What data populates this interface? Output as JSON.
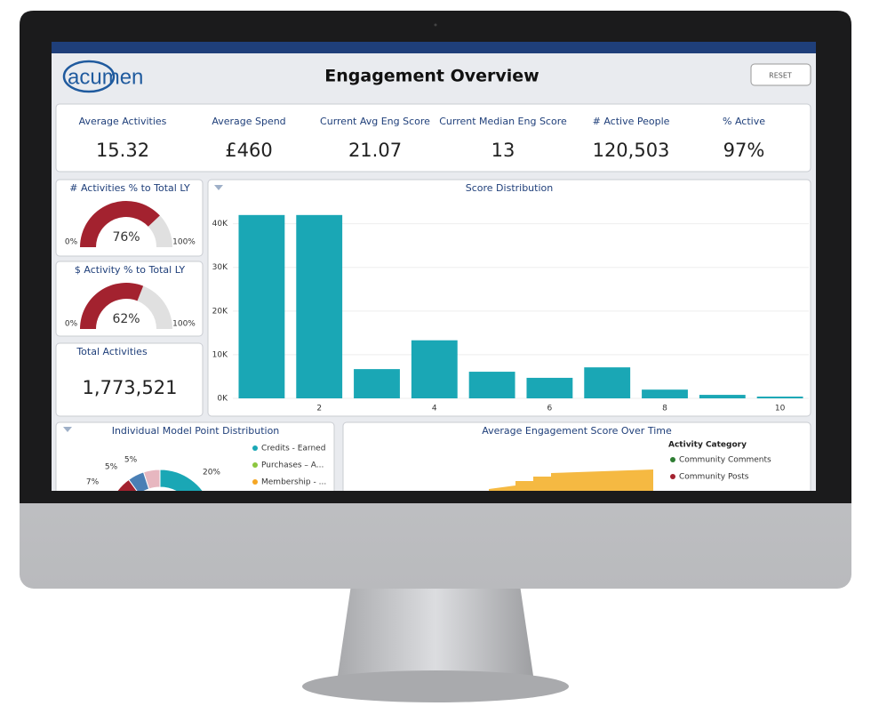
{
  "header": {
    "logo": "acumen",
    "title": "Engagement Overview",
    "reset": "RESET"
  },
  "kpis": [
    {
      "label": "Average Activities",
      "value": "15.32"
    },
    {
      "label": "Average Spend",
      "value": "£460"
    },
    {
      "label": "Current Avg Eng Score",
      "value": "21.07"
    },
    {
      "label": "Current Median Eng Score",
      "value": "13"
    },
    {
      "label": "# Active People",
      "value": "120,503"
    },
    {
      "label": "% Active",
      "value": "97%"
    }
  ],
  "gauges": [
    {
      "title": "# Activities % to Total LY",
      "value": 76,
      "value_label": "76%",
      "color": "#a3222f",
      "ticks": [
        {
          "value": 0,
          "label": "0%"
        },
        {
          "value": 100,
          "label": "100%"
        }
      ]
    },
    {
      "title": "$ Activity % to Total LY",
      "value": 62,
      "value_label": "62%",
      "color": "#a3222f",
      "ticks": [
        {
          "value": 0,
          "label": "0%"
        },
        {
          "value": 100,
          "label": "100%"
        }
      ]
    }
  ],
  "total_activities": {
    "title": "Total Activities",
    "value": "1,773,521"
  },
  "chart_data": {
    "type": "bar",
    "title": "Score Distribution",
    "categories": [
      null,
      "2",
      null,
      "4",
      null,
      "6",
      null,
      "8",
      null,
      "10"
    ],
    "values": [
      42000,
      42000,
      6700,
      13300,
      6100,
      4700,
      7100,
      2000,
      800,
      400
    ],
    "color": "#1aa7b5",
    "ylim": [
      0,
      44000
    ],
    "yticks": [
      {
        "value": 0,
        "label": "0K"
      },
      {
        "value": 10000,
        "label": "10K"
      },
      {
        "value": 20000,
        "label": "20K"
      },
      {
        "value": 30000,
        "label": "30K"
      },
      {
        "value": 40000,
        "label": "40K"
      }
    ],
    "grid": true
  },
  "model_points": {
    "title": "Individual Model Point Distribution",
    "legend": [
      {
        "name": "Credits - Earned",
        "color": "#1aa7b5"
      },
      {
        "name": "Purchases – A...",
        "color": "#8cc63f"
      },
      {
        "name": "Membership - ...",
        "color": "#f5a623"
      }
    ],
    "slices": [
      {
        "value": 20,
        "value_label": "20%",
        "color": "#1aa7b5"
      },
      {
        "value": 5,
        "value_label": "5%",
        "color": "#e7b7c0"
      },
      {
        "value": 5,
        "value_label": "5%",
        "color": "#4a7fb5"
      },
      {
        "value": 7,
        "value_label": "7%",
        "color": "#a3222f"
      }
    ]
  },
  "engagement_over_time": {
    "title": "Average Engagement Score Over Time",
    "legend_title": "Activity Category",
    "legend": [
      {
        "name": "Community Comments",
        "color": "#2e7d32"
      },
      {
        "name": "Community Posts",
        "color": "#a3222f"
      }
    ]
  }
}
